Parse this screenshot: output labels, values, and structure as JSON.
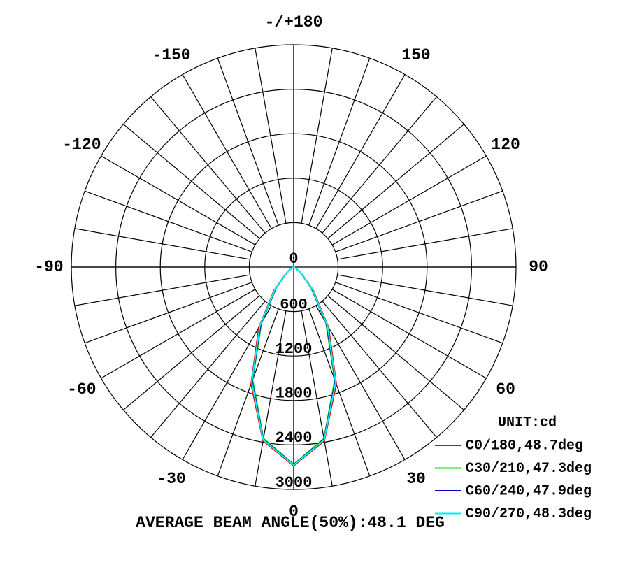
{
  "chart_data": {
    "type": "polar",
    "theta": [
      -90,
      -80,
      -70,
      -60,
      -50,
      -40,
      -30,
      -20,
      -10,
      0,
      10,
      20,
      30,
      40,
      50,
      60,
      70,
      80,
      90
    ],
    "series": [
      {
        "name": "C0/180,48.7deg",
        "color": "#e00000",
        "values": [
          0,
          1,
          8,
          38,
          140,
          410,
          940,
          1680,
          2380,
          2680,
          2380,
          1680,
          940,
          410,
          140,
          38,
          8,
          1,
          0
        ]
      },
      {
        "name": "C30/210,47.3deg",
        "color": "#00e000",
        "values": [
          0,
          1,
          7,
          33,
          125,
          370,
          870,
          1620,
          2350,
          2660,
          2350,
          1620,
          870,
          370,
          125,
          33,
          7,
          1,
          0
        ]
      },
      {
        "name": "C60/240,47.9deg",
        "color": "#0000c8",
        "values": [
          0,
          1,
          7,
          34,
          128,
          380,
          890,
          1640,
          2360,
          2665,
          2360,
          1640,
          890,
          380,
          128,
          34,
          7,
          1,
          0
        ]
      },
      {
        "name": "C90/270,48.3deg",
        "color": "#00f0f0",
        "values": [
          0,
          1,
          7,
          35,
          133,
          395,
          910,
          1655,
          2368,
          2670,
          2368,
          1655,
          910,
          395,
          133,
          35,
          7,
          1,
          0
        ]
      }
    ],
    "rlim": [
      0,
      3000
    ],
    "rticks": [
      0,
      600,
      1200,
      1800,
      2400,
      3000
    ],
    "thetaticks": [
      0,
      30,
      60,
      90,
      120,
      150,
      {
        "value": 180,
        "label": "-/+180"
      },
      -150,
      -120,
      -90,
      -60,
      -30
    ],
    "unit_label": "UNIT:cd",
    "footer": "AVERAGE BEAM ANGLE(50%):48.1 DEG"
  }
}
